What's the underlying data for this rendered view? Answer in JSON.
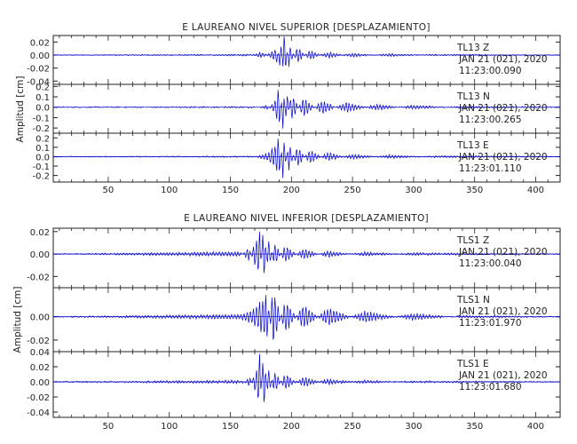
{
  "chart_data": [
    {
      "type": "line",
      "title": "E LAUREANO NIVEL SUPERIOR [DESPLAZAMIENTO]",
      "xlabel": "",
      "ylabel": "Amplitud [cm]",
      "x_ticks": [
        50,
        100,
        150,
        200,
        250,
        300,
        350,
        400
      ],
      "xlim": [
        5,
        420
      ],
      "line_color": "#0000cc",
      "panels": [
        {
          "name": "TL13 Z",
          "station": "TL13",
          "component": "Z",
          "date": "JAN 21 (021), 2020",
          "time": "11:23:00.090",
          "ylim": [
            -0.045,
            0.03
          ],
          "y_ticks": [
            0.02,
            0.0,
            -0.02,
            -0.04
          ],
          "y_tick_labels": [
            "0.02",
            "0.00",
            "-0.02",
            "-0.04"
          ],
          "x": [
            5,
            170,
            174,
            178,
            184,
            188,
            191,
            194,
            198,
            205,
            215,
            230,
            250,
            280,
            320,
            420
          ],
          "y": [
            0,
            0.001,
            0.004,
            0.003,
            -0.006,
            -0.012,
            0.026,
            -0.041,
            0.018,
            -0.013,
            0.008,
            -0.005,
            0.003,
            -0.002,
            0.001,
            0
          ],
          "noise": 0.0006
        },
        {
          "name": "TL13 N",
          "station": "TL13",
          "component": "N",
          "date": "JAN 21 (021), 2020",
          "time": "11:23:00.265",
          "ylim": [
            -0.25,
            0.22
          ],
          "y_ticks": [
            0.2,
            0.1,
            0.0,
            -0.1,
            -0.2
          ],
          "y_tick_labels": [
            "0.2",
            "0.1",
            "0.0",
            "-0.1",
            "-0.2"
          ],
          "x": [
            5,
            172,
            180,
            186,
            190,
            193,
            196,
            200,
            210,
            225,
            245,
            270,
            300,
            340,
            420
          ],
          "y": [
            0,
            0.005,
            -0.02,
            0.05,
            0.21,
            -0.22,
            0.17,
            -0.14,
            0.1,
            -0.07,
            0.05,
            -0.03,
            0.02,
            -0.01,
            0
          ],
          "noise": 0.004
        },
        {
          "name": "TL13 E",
          "station": "TL13",
          "component": "E",
          "date": "JAN 21 (021), 2020",
          "time": "11:23:01.110",
          "ylim": [
            -0.27,
            0.25
          ],
          "y_ticks": [
            0.2,
            0.1,
            0.0,
            -0.1,
            -0.2
          ],
          "y_tick_labels": [
            "0.2",
            "0.1",
            "0.0",
            "-0.1",
            "-0.2"
          ],
          "x": [
            5,
            172,
            180,
            186,
            190,
            193,
            198,
            205,
            215,
            230,
            250,
            280,
            320,
            420
          ],
          "y": [
            0,
            0.005,
            0.04,
            0.11,
            0.22,
            -0.24,
            0.15,
            -0.12,
            0.08,
            -0.05,
            0.03,
            -0.02,
            0.01,
            0
          ],
          "noise": 0.004
        }
      ]
    },
    {
      "type": "line",
      "title": "E LAUREANO NIVEL INFERIOR [DESPLAZAMIENTO]",
      "xlabel": "",
      "ylabel": "Amplitud [cm]",
      "x_ticks": [
        50,
        100,
        150,
        200,
        250,
        300,
        350,
        400
      ],
      "xlim": [
        5,
        420
      ],
      "line_color": "#0000cc",
      "panels": [
        {
          "name": "TLS1 Z",
          "station": "TLS1",
          "component": "Z",
          "date": "JAN 21 (021), 2020",
          "time": "11:23:00.040",
          "ylim": [
            -0.03,
            0.023
          ],
          "y_ticks": [
            0.02,
            0.0,
            -0.02
          ],
          "y_tick_labels": [
            "0.02",
            "0.00",
            "-0.02"
          ],
          "x": [
            5,
            158,
            165,
            170,
            174,
            177,
            181,
            186,
            195,
            210,
            230,
            260,
            300,
            420
          ],
          "y": [
            0,
            0.002,
            -0.006,
            0.01,
            0.021,
            -0.028,
            0.016,
            -0.011,
            0.008,
            -0.005,
            0.003,
            -0.002,
            0.001,
            0
          ],
          "noise": 0.0004
        },
        {
          "name": "TLS1 N",
          "station": "TLS1",
          "component": "N",
          "date": "JAN 21 (021), 2020",
          "time": "11:23:01.970",
          "ylim": [
            -0.03,
            0.025
          ],
          "y_ticks": [
            0.0,
            -0.02
          ],
          "y_tick_labels": [
            "0.00",
            "-0.02"
          ],
          "x": [
            5,
            158,
            168,
            175,
            180,
            185,
            195,
            210,
            230,
            260,
            300,
            340,
            420
          ],
          "y": [
            0,
            0.002,
            0.006,
            0.014,
            0.02,
            -0.026,
            0.015,
            -0.011,
            0.008,
            -0.005,
            0.003,
            -0.001,
            0
          ],
          "noise": 0.0004
        },
        {
          "name": "TLS1 E",
          "station": "TLS1",
          "component": "E",
          "date": "JAN 21 (021), 2020",
          "time": "11:23:01.680",
          "ylim": [
            -0.047,
            0.04
          ],
          "y_ticks": [
            0.04,
            0.02,
            0.0,
            -0.02,
            -0.04
          ],
          "y_tick_labels": [
            "0.04",
            "0.02",
            "0.00",
            "-0.02",
            "-0.04"
          ],
          "x": [
            5,
            160,
            166,
            171,
            174,
            177,
            181,
            186,
            195,
            210,
            230,
            260,
            300,
            420
          ],
          "y": [
            0,
            0.002,
            -0.006,
            0.015,
            0.038,
            -0.044,
            0.022,
            -0.016,
            0.011,
            -0.007,
            0.004,
            -0.002,
            0.001,
            0
          ],
          "noise": 0.0007
        }
      ]
    }
  ]
}
